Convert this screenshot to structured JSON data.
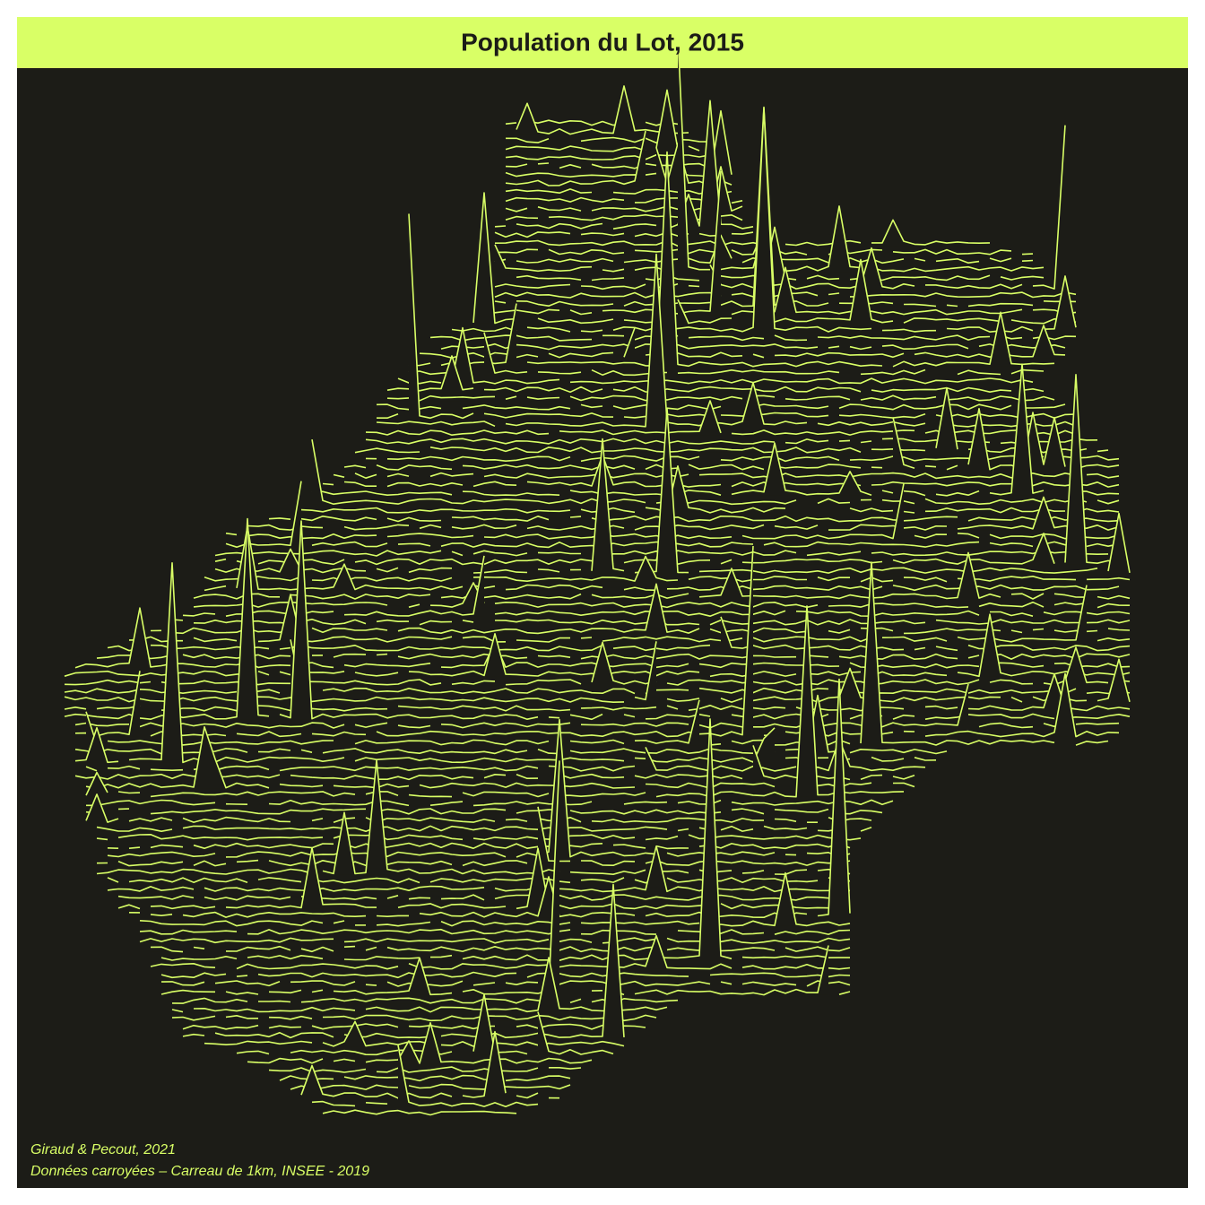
{
  "header": {
    "title": "Population du Lot, 2015"
  },
  "credits": {
    "authors": "Giraud & Pecout, 2021",
    "source": "Données carroyées – Carreau de 1km, INSEE - 2019"
  }
}
